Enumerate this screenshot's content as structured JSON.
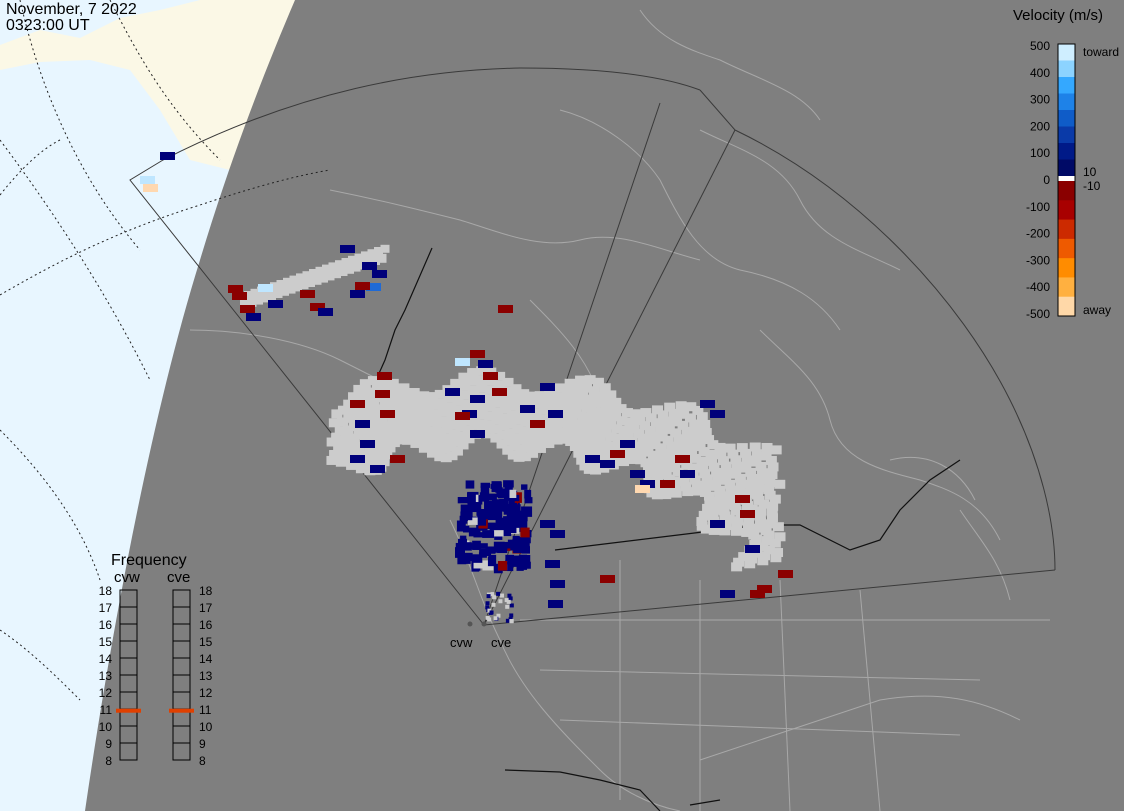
{
  "header": {
    "date": "November, 7 2022",
    "time": "0323:00 UT"
  },
  "colorbar": {
    "title": "Velocity (m/s)",
    "ticks": [
      "500",
      "400",
      "300",
      "200",
      "100",
      "0",
      "-100",
      "-200",
      "-300",
      "-400",
      "-500"
    ],
    "inner_labels": [
      "10",
      "-10"
    ],
    "toward_label": "toward",
    "away_label": "away",
    "colors": [
      "#cfeeff",
      "#8cd3ff",
      "#34a8ff",
      "#1e82e8",
      "#0f5cc8",
      "#0a3aa8",
      "#001a88",
      "#000a66",
      "#8a0000",
      "#a80000",
      "#cc2a00",
      "#ee5a00",
      "#ff8c00",
      "#ffb040",
      "#ffd8a8"
    ]
  },
  "frequency": {
    "title": "Frequency",
    "radars": [
      {
        "label": "cvw",
        "value_mhz": 10.9
      },
      {
        "label": "cve",
        "value_mhz": 10.9
      }
    ],
    "levels": [
      "18",
      "17",
      "16",
      "15",
      "14",
      "13",
      "12",
      "11",
      "10",
      "9",
      "8"
    ],
    "marker_color": "#e04000"
  },
  "map": {
    "sites": [
      {
        "label": "cvw"
      },
      {
        "label": "cve"
      }
    ],
    "colors": {
      "ocean": "#e8f6ff",
      "land_day": "#fbf8e6",
      "night": "#7f7f7f",
      "coast": "#b0b0b0",
      "fov": "#3a3a3a",
      "no_data_gray": "#cccccc",
      "toward_dark": "#00007a",
      "away_dark": "#8b0000"
    }
  }
}
